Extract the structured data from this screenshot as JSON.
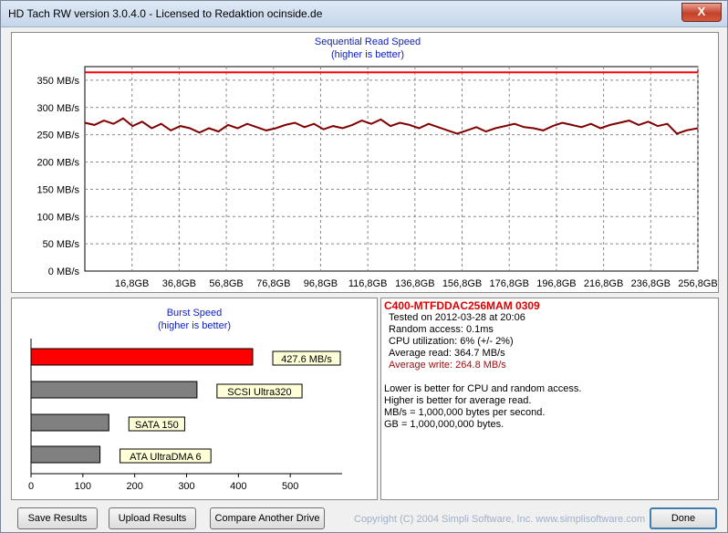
{
  "window": {
    "title": "HD Tach RW version 3.0.4.0 - Licensed to Redaktion ocinside.de",
    "close_glyph": "X"
  },
  "sequential_chart": {
    "title": "Sequential Read Speed",
    "subtitle": "(higher is better)",
    "y_ticks": [
      "0 MB/s",
      "50 MB/s",
      "100 MB/s",
      "150 MB/s",
      "200 MB/s",
      "250 MB/s",
      "300 MB/s",
      "350 MB/s"
    ],
    "x_ticks": [
      "16,8GB",
      "36,8GB",
      "56,8GB",
      "76,8GB",
      "96,8GB",
      "116,8GB",
      "136,8GB",
      "156,8GB",
      "176,8GB",
      "196,8GB",
      "216,8GB",
      "236,8GB",
      "256,8GB"
    ]
  },
  "burst_chart": {
    "title": "Burst Speed",
    "subtitle": "(higher is better)",
    "x_ticks": [
      "0",
      "100",
      "200",
      "300",
      "400",
      "500"
    ]
  },
  "info": {
    "drive_name": "C400-MTFDDAC256MAM 0309",
    "tested_on": "Tested on 2012-03-28 at 20:06",
    "random_access": "Random access: 0.1ms",
    "cpu_utilization": "CPU utilization: 6% (+/- 2%)",
    "average_read": "Average read: 364.7 MB/s",
    "average_write": "Average write: 264.8 MB/s",
    "note1": "Lower is better for CPU and random access.",
    "note2": "Higher is better for average read.",
    "note3": "MB/s = 1,000,000 bytes per second.",
    "note4": "GB = 1,000,000,000 bytes."
  },
  "buttons": {
    "save": "Save Results",
    "upload": "Upload Results",
    "compare": "Compare Another Drive",
    "done": "Done"
  },
  "copyright": "Copyright (C) 2004 Simpli Software, Inc. www.simplisoftware.com",
  "colors": {
    "read_line": "#ff0000",
    "write_line": "#800000",
    "drive_name": "#e00000",
    "average_write": "#a01010",
    "chart_title": "#1020c0"
  },
  "chart_data": [
    {
      "type": "line",
      "title": "Sequential Read Speed",
      "subtitle": "(higher is better)",
      "ylabel": "MB/s",
      "xlabel": "",
      "ylim": [
        0,
        375
      ],
      "y_ticks": [
        0,
        50,
        100,
        150,
        200,
        250,
        300,
        350
      ],
      "x_ticks": [
        "16,8GB",
        "36,8GB",
        "56,8GB",
        "76,8GB",
        "96,8GB",
        "116,8GB",
        "136,8GB",
        "156,8GB",
        "176,8GB",
        "196,8GB",
        "216,8GB",
        "236,8GB",
        "256,8GB"
      ],
      "xlim": [
        0,
        256.8
      ],
      "grid": true,
      "series": [
        {
          "color": "#ff0000",
          "x": [
            0,
            256.8
          ],
          "values": [
            364.7,
            364.7
          ]
        },
        {
          "color": "#800000",
          "x": [
            0,
            4,
            8,
            12,
            16,
            20,
            24,
            28,
            32,
            36,
            40,
            44,
            48,
            52,
            56,
            60,
            64,
            68,
            72,
            76,
            80,
            84,
            88,
            92,
            96,
            100,
            104,
            108,
            112,
            116,
            120,
            124,
            128,
            132,
            136,
            140,
            144,
            148,
            152,
            156,
            160,
            164,
            168,
            172,
            176,
            180,
            184,
            188,
            192,
            196,
            200,
            204,
            208,
            212,
            216,
            220,
            224,
            228,
            232,
            236,
            240,
            244,
            248,
            252,
            256.8
          ],
          "values": [
            272,
            268,
            276,
            270,
            280,
            266,
            274,
            262,
            270,
            258,
            266,
            262,
            254,
            262,
            256,
            268,
            262,
            270,
            264,
            258,
            262,
            268,
            272,
            264,
            270,
            260,
            266,
            262,
            268,
            276,
            270,
            278,
            266,
            272,
            268,
            262,
            270,
            264,
            258,
            252,
            258,
            264,
            256,
            262,
            266,
            270,
            264,
            262,
            258,
            266,
            272,
            268,
            264,
            270,
            262,
            268,
            272,
            276,
            268,
            274,
            266,
            270,
            252,
            258,
            262
          ]
        }
      ]
    },
    {
      "type": "bar",
      "title": "Burst Speed",
      "subtitle": "(higher is better)",
      "orientation": "horizontal",
      "xlim": [
        0,
        600
      ],
      "x_ticks": [
        0,
        100,
        200,
        300,
        400,
        500
      ],
      "categories": [
        "427.6 MB/s",
        "SCSI Ultra320",
        "SATA 150",
        "ATA UltraDMA 6"
      ],
      "values": [
        427.6,
        320,
        150,
        133
      ],
      "bar_colors": [
        "#ff0000",
        "#808080",
        "#808080",
        "#808080"
      ]
    }
  ]
}
